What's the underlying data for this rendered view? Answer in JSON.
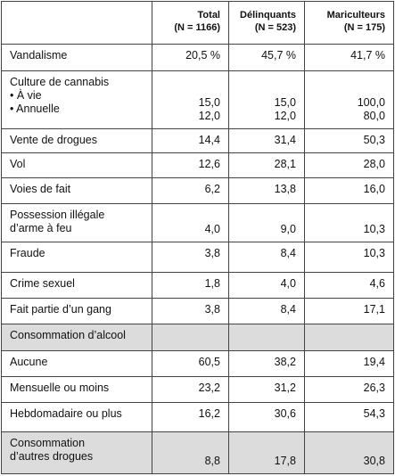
{
  "table": {
    "header": [
      [],
      [
        "Total",
        "(N = 1166)"
      ],
      [
        "Délinquants",
        "(N = 523)"
      ],
      [
        "Mariculteurs",
        "(N = 175)"
      ]
    ],
    "rows": [
      {
        "label": [
          "Vandalisme"
        ],
        "cells": [
          [
            "20,5 %"
          ],
          [
            "45,7 %"
          ],
          [
            "41,7 %"
          ]
        ]
      },
      {
        "label": [
          "Culture de cannabis",
          "• À vie",
          "• Annuelle"
        ],
        "cells": [
          [
            "15,0",
            "12,0"
          ],
          [
            "15,0",
            "12,0"
          ],
          [
            "100,0",
            "80,0"
          ]
        ]
      },
      {
        "label": [
          "Vente de drogues"
        ],
        "cells": [
          [
            "14,4"
          ],
          [
            "31,4"
          ],
          [
            "50,3"
          ]
        ]
      },
      {
        "label": [
          "Vol"
        ],
        "cells": [
          [
            "12,6"
          ],
          [
            "28,1"
          ],
          [
            "28,0"
          ]
        ]
      },
      {
        "label": [
          "Voies de fait"
        ],
        "cells": [
          [
            "6,2"
          ],
          [
            "13,8"
          ],
          [
            "16,0"
          ]
        ]
      },
      {
        "label": [
          "Possession illégale",
          "d’arme à feu"
        ],
        "cells": [
          [
            "4,0"
          ],
          [
            "9,0"
          ],
          [
            "10,3"
          ]
        ]
      },
      {
        "label": [
          "Fraude"
        ],
        "cells": [
          [
            "3,8"
          ],
          [
            "8,4"
          ],
          [
            "10,3"
          ]
        ]
      },
      {
        "label": [
          "Crime sexuel"
        ],
        "cells": [
          [
            "1,8"
          ],
          [
            "4,0"
          ],
          [
            "4,6"
          ]
        ]
      },
      {
        "label": [
          "Fait partie d’un gang"
        ],
        "cells": [
          [
            "3,8"
          ],
          [
            "8,4"
          ],
          [
            "17,1"
          ]
        ]
      },
      {
        "label": [
          "Consommation d’alcool"
        ],
        "cells": [
          [],
          [],
          []
        ],
        "shaded": true
      },
      {
        "label": [
          "Aucune"
        ],
        "cells": [
          [
            "60,5"
          ],
          [
            "38,2"
          ],
          [
            "19,4"
          ]
        ]
      },
      {
        "label": [
          "Mensuelle ou moins"
        ],
        "cells": [
          [
            "23,2"
          ],
          [
            "31,2"
          ],
          [
            "26,3"
          ]
        ]
      },
      {
        "label": [
          "Hebdomadaire ou plus"
        ],
        "cells": [
          [
            "16,2"
          ],
          [
            "30,6"
          ],
          [
            "54,3"
          ]
        ]
      },
      {
        "label": [
          "Consommation",
          "d’autres drogues"
        ],
        "cells": [
          [
            "8,8"
          ],
          [
            "17,8"
          ],
          [
            "30,8"
          ]
        ],
        "shaded": true
      }
    ]
  }
}
